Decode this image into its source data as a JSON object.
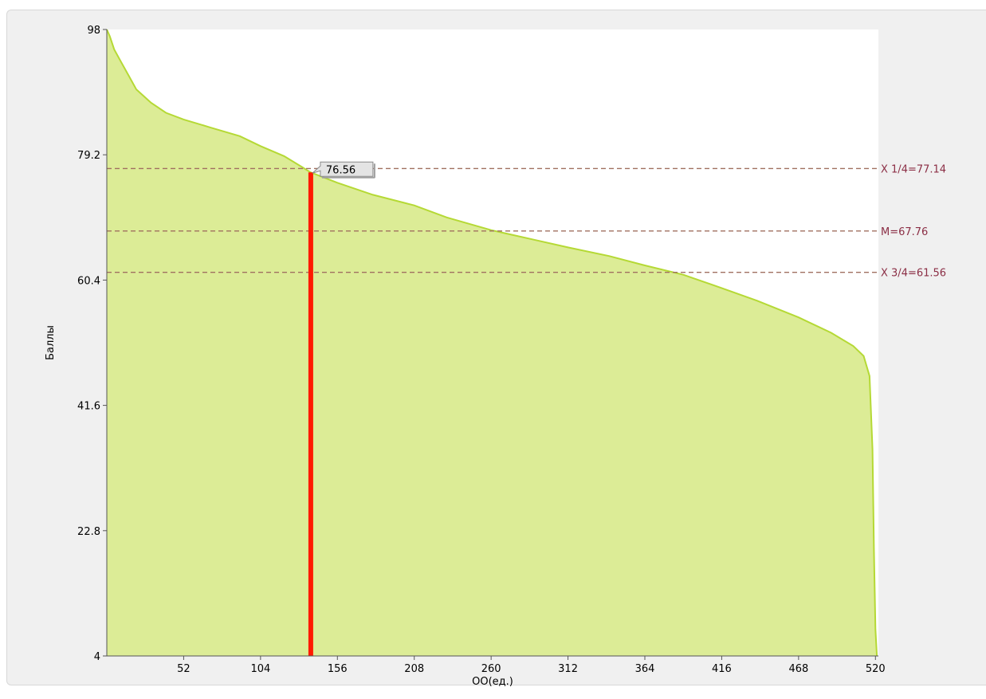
{
  "chart_data": {
    "type": "area",
    "title": "",
    "xlabel": "ОО(ед.)",
    "ylabel": "Баллы",
    "xlim": [
      0,
      522
    ],
    "ylim": [
      4,
      98
    ],
    "xticks": [
      52,
      104,
      156,
      208,
      260,
      312,
      364,
      416,
      468,
      520
    ],
    "yticks": [
      4,
      22.8,
      41.6,
      60.4,
      79.2,
      98
    ],
    "ytick_labels": [
      "4",
      "22.8",
      "41.6",
      "60.4",
      "79.2",
      "98"
    ],
    "grid": false,
    "legend": "none",
    "series": [
      {
        "x": [
          0,
          2,
          5,
          10,
          15,
          20,
          30,
          40,
          52,
          70,
          90,
          104,
          120,
          138,
          156,
          180,
          208,
          230,
          260,
          290,
          312,
          340,
          364,
          390,
          416,
          440,
          468,
          490,
          505,
          512,
          516,
          518,
          519,
          520,
          521
        ],
        "values": [
          98,
          97,
          95,
          93,
          91,
          89,
          87,
          85.5,
          84.5,
          83.3,
          82,
          80.5,
          79,
          76.56,
          75,
          73.2,
          71.6,
          69.8,
          67.9,
          66.4,
          65.3,
          64,
          62.6,
          61.2,
          59.2,
          57.3,
          54.8,
          52.5,
          50.5,
          49,
          46,
          35,
          20,
          8,
          4
        ]
      }
    ],
    "reference_lines": [
      {
        "label": "X 1/4=77.14",
        "value": 77.14
      },
      {
        "label": "M=67.76",
        "value": 67.76
      },
      {
        "label": "X 3/4=61.56",
        "value": 61.56
      }
    ],
    "marker": {
      "x": 138,
      "value": 76.56,
      "label": "76.56"
    },
    "colors": {
      "area_fill": "#dcec96",
      "area_line": "#b5d935",
      "marker": "#ff1a00",
      "ref_line": "#a07060",
      "ref_label": "#8b2e45"
    }
  }
}
